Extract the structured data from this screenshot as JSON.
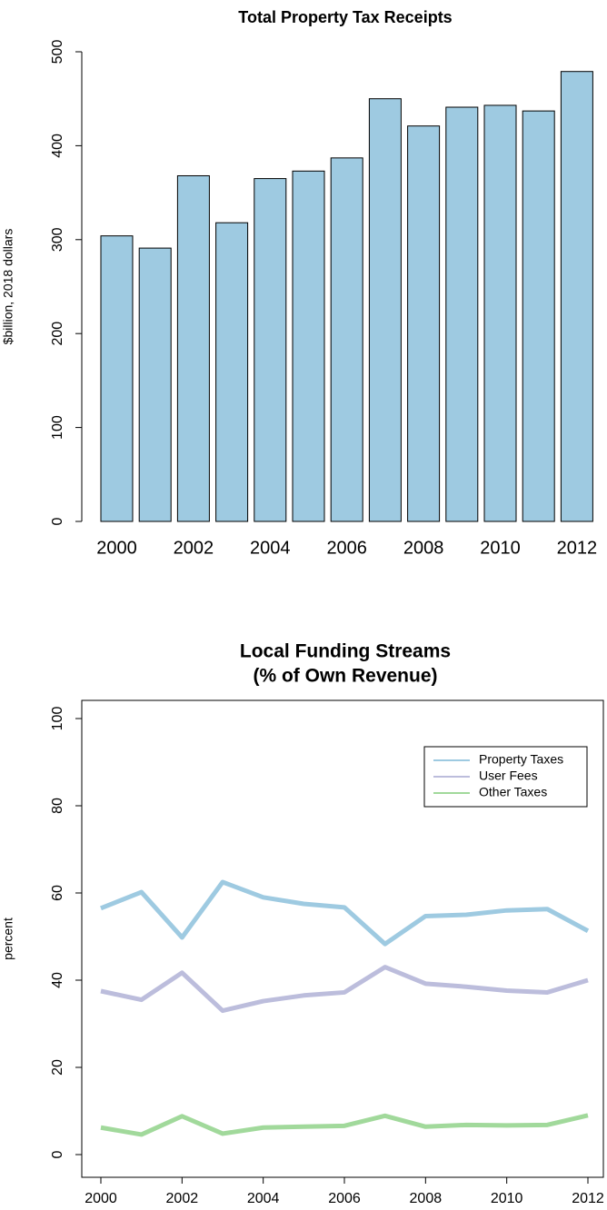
{
  "chart_data": [
    {
      "type": "bar",
      "title": "Total Property Tax Receipts",
      "ylabel": "$billion, 2018 dollars",
      "categories": [
        "2000",
        null,
        "2002",
        null,
        "2004",
        null,
        "2006",
        null,
        "2008",
        null,
        "2010",
        null,
        "2012"
      ],
      "values": [
        304,
        291,
        368,
        318,
        365,
        373,
        387,
        450,
        421,
        441,
        443,
        437,
        479
      ],
      "color": "#9ecae1",
      "ylim": [
        0,
        500
      ],
      "yticks": [
        0,
        100,
        200,
        300,
        400,
        500
      ]
    },
    {
      "type": "line",
      "title": [
        "Local Funding Streams",
        "(% of Own Revenue)"
      ],
      "ylabel": "percent",
      "x": [
        2000,
        2001,
        2002,
        2003,
        2004,
        2005,
        2006,
        2007,
        2008,
        2009,
        2010,
        2011,
        2012
      ],
      "series": [
        {
          "name": "Property Taxes",
          "color": "#9ecae1",
          "values": [
            56.5,
            60.2,
            49.8,
            62.5,
            59,
            57.5,
            56.7,
            48.3,
            54.7,
            55,
            56,
            56.3,
            51.3
          ]
        },
        {
          "name": "User Fees",
          "color": "#bcbddc",
          "values": [
            37.5,
            35.5,
            41.7,
            33,
            35.2,
            36.5,
            37.2,
            43,
            39.2,
            38.5,
            37.6,
            37.2,
            40
          ]
        },
        {
          "name": "Other Taxes",
          "color": "#a1d99b",
          "values": [
            6.2,
            4.6,
            8.8,
            4.8,
            6.2,
            6.4,
            6.6,
            8.9,
            6.4,
            6.8,
            6.7,
            6.8,
            9.0
          ]
        }
      ],
      "xlim": [
        2000,
        2012
      ],
      "xticks": [
        2000,
        2002,
        2004,
        2006,
        2008,
        2010,
        2012
      ],
      "ylim": [
        0,
        100
      ],
      "yticks": [
        0,
        20,
        40,
        60,
        80,
        100
      ],
      "legend": "top-right"
    }
  ]
}
